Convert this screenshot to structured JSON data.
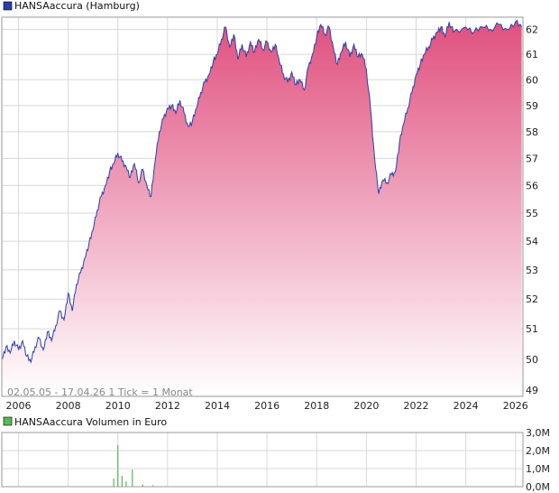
{
  "colors": {
    "price_line": "#2a3fa6",
    "fill_top": "#e0507f",
    "fill_bottom": "#ffffff",
    "volume_legend": "#55bb55",
    "grid": "#d8d8d8"
  },
  "chart_data": [
    {
      "type": "area",
      "title": "HANSAaccura (Hamburg)",
      "note": "02.05.05 - 17.04.26   1 Tick = 1 Monat",
      "x_ticks": [
        "2006",
        "2008",
        "2010",
        "2012",
        "2014",
        "2016",
        "2018",
        "2020",
        "2022",
        "2024",
        "2026"
      ],
      "y_ticks": [
        "62",
        "61",
        "60",
        "59",
        "58",
        "57",
        "56",
        "55",
        "54",
        "53",
        "52",
        "51",
        "50",
        "49"
      ],
      "ylim": [
        48.8,
        62.5
      ],
      "y_scale": "log",
      "grid": true,
      "series": [
        {
          "name": "HANSAaccura (Hamburg)",
          "points": [
            [
              "2005-05",
              50.0
            ],
            [
              "2005-07",
              50.4
            ],
            [
              "2005-09",
              50.2
            ],
            [
              "2005-11",
              50.6
            ],
            [
              "2006-01",
              50.3
            ],
            [
              "2006-03",
              50.6
            ],
            [
              "2006-05",
              50.1
            ],
            [
              "2006-07",
              49.9
            ],
            [
              "2006-09",
              50.4
            ],
            [
              "2006-11",
              50.7
            ],
            [
              "2007-01",
              50.3
            ],
            [
              "2007-03",
              50.9
            ],
            [
              "2007-05",
              50.6
            ],
            [
              "2007-07",
              51.1
            ],
            [
              "2007-09",
              51.6
            ],
            [
              "2007-11",
              51.3
            ],
            [
              "2008-01",
              52.2
            ],
            [
              "2008-03",
              51.6
            ],
            [
              "2008-05",
              52.5
            ],
            [
              "2008-07",
              52.9
            ],
            [
              "2008-09",
              53.4
            ],
            [
              "2008-11",
              53.9
            ],
            [
              "2009-01",
              54.4
            ],
            [
              "2009-03",
              55.1
            ],
            [
              "2009-05",
              55.6
            ],
            [
              "2009-07",
              56.0
            ],
            [
              "2009-09",
              56.5
            ],
            [
              "2009-11",
              56.8
            ],
            [
              "2010-01",
              57.2
            ],
            [
              "2010-03",
              56.9
            ],
            [
              "2010-05",
              56.7
            ],
            [
              "2010-07",
              56.3
            ],
            [
              "2010-09",
              56.8
            ],
            [
              "2010-11",
              56.1
            ],
            [
              "2011-01",
              56.6
            ],
            [
              "2011-03",
              56.0
            ],
            [
              "2011-05",
              55.6
            ],
            [
              "2011-07",
              56.9
            ],
            [
              "2011-09",
              58.0
            ],
            [
              "2011-11",
              58.5
            ],
            [
              "2012-01",
              58.9
            ],
            [
              "2012-03",
              59.0
            ],
            [
              "2012-05",
              58.7
            ],
            [
              "2012-07",
              59.2
            ],
            [
              "2012-09",
              58.7
            ],
            [
              "2012-11",
              58.2
            ],
            [
              "2013-01",
              58.4
            ],
            [
              "2013-03",
              58.9
            ],
            [
              "2013-05",
              59.5
            ],
            [
              "2013-07",
              59.9
            ],
            [
              "2013-09",
              60.2
            ],
            [
              "2013-11",
              60.7
            ],
            [
              "2014-01",
              61.0
            ],
            [
              "2014-03",
              61.6
            ],
            [
              "2014-05",
              62.1
            ],
            [
              "2014-07",
              61.3
            ],
            [
              "2014-09",
              61.8
            ],
            [
              "2014-11",
              60.8
            ],
            [
              "2015-01",
              61.4
            ],
            [
              "2015-03",
              60.9
            ],
            [
              "2015-05",
              61.5
            ],
            [
              "2015-07",
              61.1
            ],
            [
              "2015-09",
              61.6
            ],
            [
              "2015-11",
              61.2
            ],
            [
              "2016-01",
              61.5
            ],
            [
              "2016-03",
              61.1
            ],
            [
              "2016-05",
              61.4
            ],
            [
              "2016-07",
              60.7
            ],
            [
              "2016-09",
              60.2
            ],
            [
              "2016-11",
              59.9
            ],
            [
              "2017-01",
              60.3
            ],
            [
              "2017-03",
              59.8
            ],
            [
              "2017-05",
              60.0
            ],
            [
              "2017-07",
              59.6
            ],
            [
              "2017-09",
              60.5
            ],
            [
              "2017-11",
              61.0
            ],
            [
              "2018-01",
              61.7
            ],
            [
              "2018-03",
              62.2
            ],
            [
              "2018-05",
              61.8
            ],
            [
              "2018-07",
              62.1
            ],
            [
              "2018-09",
              61.3
            ],
            [
              "2018-11",
              60.6
            ],
            [
              "2019-01",
              61.1
            ],
            [
              "2019-03",
              61.5
            ],
            [
              "2019-05",
              60.9
            ],
            [
              "2019-07",
              61.4
            ],
            [
              "2019-09",
              60.9
            ],
            [
              "2019-11",
              61.0
            ],
            [
              "2020-01",
              60.4
            ],
            [
              "2020-03",
              58.9
            ],
            [
              "2020-05",
              57.0
            ],
            [
              "2020-07",
              55.7
            ],
            [
              "2020-09",
              56.2
            ],
            [
              "2020-11",
              56.1
            ],
            [
              "2021-01",
              56.4
            ],
            [
              "2021-03",
              56.5
            ],
            [
              "2021-05",
              57.6
            ],
            [
              "2021-07",
              58.3
            ],
            [
              "2021-09",
              58.9
            ],
            [
              "2021-11",
              59.5
            ],
            [
              "2022-01",
              60.2
            ],
            [
              "2022-03",
              60.6
            ],
            [
              "2022-05",
              61.0
            ],
            [
              "2022-07",
              61.3
            ],
            [
              "2022-09",
              61.6
            ],
            [
              "2022-11",
              61.9
            ],
            [
              "2023-01",
              62.1
            ],
            [
              "2023-03",
              61.7
            ],
            [
              "2023-05",
              62.3
            ],
            [
              "2023-07",
              61.9
            ],
            [
              "2024-01",
              62.1
            ],
            [
              "2024-05",
              61.9
            ],
            [
              "2024-09",
              62.1
            ],
            [
              "2025-01",
              62.0
            ],
            [
              "2025-05",
              62.2
            ],
            [
              "2025-09",
              62.0
            ],
            [
              "2026-01",
              62.3
            ],
            [
              "2026-04",
              62.1
            ]
          ]
        }
      ]
    },
    {
      "type": "bar",
      "title": "HANSAaccura Volumen in Euro",
      "y_ticks": [
        "3,0M",
        "2,0M",
        "1,0M",
        "0,0M"
      ],
      "ylim": [
        0,
        3.0
      ],
      "series": [
        {
          "name": "HANSAaccura Volumen in Euro",
          "points": [
            [
              "2009-11",
              0.45
            ],
            [
              "2010-01",
              2.3
            ],
            [
              "2010-03",
              0.6
            ],
            [
              "2010-05",
              0.3
            ],
            [
              "2010-08",
              0.95
            ],
            [
              "2011-01",
              0.12
            ],
            [
              "2011-06",
              0.08
            ]
          ]
        }
      ]
    }
  ]
}
